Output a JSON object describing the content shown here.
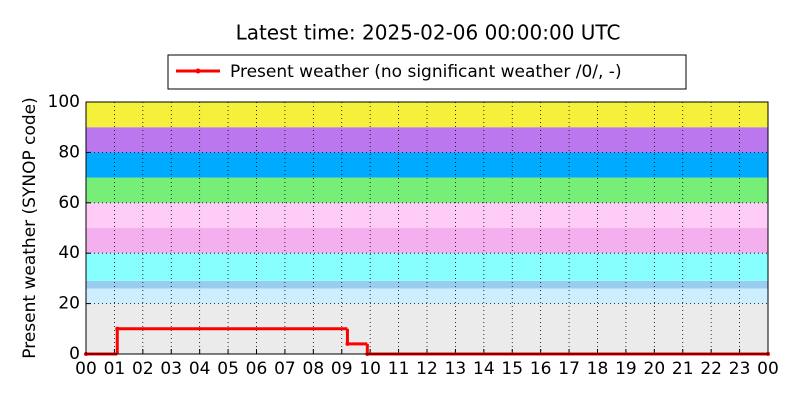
{
  "chart_data": {
    "type": "step",
    "title": "Latest time: 2025-02-06 00:00:00 UTC",
    "y_label": "Present weather (SYNOP code)",
    "xlim": [
      0,
      24
    ],
    "xticks": [
      {
        "value": 0,
        "label": "00"
      },
      {
        "value": 1,
        "label": "01"
      },
      {
        "value": 2,
        "label": "02"
      },
      {
        "value": 3,
        "label": "03"
      },
      {
        "value": 4,
        "label": "04"
      },
      {
        "value": 5,
        "label": "05"
      },
      {
        "value": 6,
        "label": "06"
      },
      {
        "value": 7,
        "label": "07"
      },
      {
        "value": 8,
        "label": "08"
      },
      {
        "value": 9,
        "label": "09"
      },
      {
        "value": 10,
        "label": "10"
      },
      {
        "value": 11,
        "label": "11"
      },
      {
        "value": 12,
        "label": "12"
      },
      {
        "value": 13,
        "label": "13"
      },
      {
        "value": 14,
        "label": "14"
      },
      {
        "value": 15,
        "label": "15"
      },
      {
        "value": 16,
        "label": "16"
      },
      {
        "value": 17,
        "label": "17"
      },
      {
        "value": 18,
        "label": "18"
      },
      {
        "value": 19,
        "label": "19"
      },
      {
        "value": 20,
        "label": "20"
      },
      {
        "value": 21,
        "label": "21"
      },
      {
        "value": 22,
        "label": "22"
      },
      {
        "value": 23,
        "label": "23"
      },
      {
        "value": 24,
        "label": "00"
      }
    ],
    "ylim": [
      0,
      100
    ],
    "yticks": [
      0,
      20,
      40,
      60,
      80,
      100
    ],
    "grid": true,
    "legend": "upper center",
    "bands": [
      {
        "from": 0,
        "to": 20,
        "color": "#ebebeb"
      },
      {
        "from": 20,
        "to": 26,
        "color": "#cceeff"
      },
      {
        "from": 26,
        "to": 29,
        "color": "#99ccee"
      },
      {
        "from": 29,
        "to": 40,
        "color": "#88ffff"
      },
      {
        "from": 40,
        "to": 50,
        "color": "#f4b0ee"
      },
      {
        "from": 50,
        "to": 60,
        "color": "#ffccf8"
      },
      {
        "from": 60,
        "to": 70,
        "color": "#77ee77"
      },
      {
        "from": 70,
        "to": 80,
        "color": "#00aaff"
      },
      {
        "from": 80,
        "to": 90,
        "color": "#bb77ee"
      },
      {
        "from": 90,
        "to": 100,
        "color": "#f5f03a"
      }
    ],
    "series": [
      {
        "name": "Present weather (no significant weather /0/, -)",
        "color": "#ff0000",
        "x": [
          0,
          1.1,
          9.2,
          9.9,
          24
        ],
        "values": [
          0,
          10,
          4,
          0,
          0
        ]
      }
    ]
  }
}
